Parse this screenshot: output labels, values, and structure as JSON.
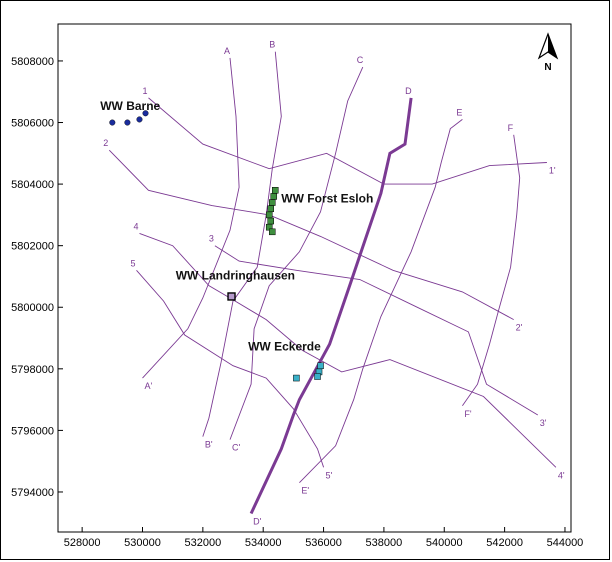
{
  "axes": {
    "x_ticks": [
      "528000",
      "530000",
      "532000",
      "534000",
      "536000",
      "538000",
      "540000",
      "542000",
      "544000"
    ],
    "y_ticks": [
      "5808000",
      "5806000",
      "5804000",
      "5802000",
      "5800000",
      "5798000",
      "5796000",
      "5794000"
    ],
    "xlim": [
      527200,
      544200
    ],
    "ylim": [
      5792700,
      5809200
    ]
  },
  "north_arrow": {
    "label": "N"
  },
  "colors": {
    "section": "#7b3a93",
    "barne": "#1a2c9c",
    "forst": "#3f8f3f",
    "landring": "#6a3d8f",
    "eckerde": "#3ab0c8"
  },
  "section_lines": [
    {
      "label": "A",
      "end_label": "A'",
      "bold": false,
      "points": [
        [
          532900,
          5808100
        ],
        [
          533100,
          5806200
        ],
        [
          533200,
          5803900
        ],
        [
          532900,
          5802500
        ],
        [
          532000,
          5800300
        ],
        [
          531500,
          5799300
        ],
        [
          530000,
          5797700
        ]
      ]
    },
    {
      "label": "B",
      "end_label": "B'",
      "bold": false,
      "points": [
        [
          534400,
          5808300
        ],
        [
          534600,
          5806200
        ],
        [
          534300,
          5804500
        ],
        [
          534100,
          5803000
        ],
        [
          533800,
          5801300
        ],
        [
          533000,
          5800200
        ],
        [
          532600,
          5798200
        ],
        [
          532200,
          5796400
        ],
        [
          532000,
          5795800
        ]
      ]
    },
    {
      "label": "C",
      "end_label": "C'",
      "bold": false,
      "points": [
        [
          537300,
          5807800
        ],
        [
          536800,
          5806700
        ],
        [
          536400,
          5805000
        ],
        [
          535900,
          5803100
        ],
        [
          535200,
          5801800
        ],
        [
          534200,
          5800700
        ],
        [
          533700,
          5799300
        ],
        [
          533600,
          5797500
        ],
        [
          532900,
          5795700
        ]
      ]
    },
    {
      "label": "D",
      "end_label": "D'",
      "bold": true,
      "points": [
        [
          538900,
          5806800
        ],
        [
          538700,
          5805300
        ],
        [
          538200,
          5805000
        ],
        [
          537900,
          5803700
        ],
        [
          536900,
          5800800
        ],
        [
          536200,
          5798800
        ],
        [
          535200,
          5797000
        ],
        [
          535000,
          5796500
        ],
        [
          534600,
          5795400
        ],
        [
          533600,
          5793300
        ]
      ]
    },
    {
      "label": "E",
      "end_label": "E'",
      "bold": false,
      "points": [
        [
          540600,
          5806100
        ],
        [
          540200,
          5805800
        ],
        [
          539900,
          5804700
        ],
        [
          539700,
          5803900
        ],
        [
          538900,
          5801800
        ],
        [
          537900,
          5799700
        ],
        [
          537300,
          5798000
        ],
        [
          537000,
          5797000
        ],
        [
          536400,
          5795500
        ],
        [
          535200,
          5794300
        ]
      ]
    },
    {
      "label": "F",
      "end_label": "F'",
      "bold": false,
      "points": [
        [
          542300,
          5805600
        ],
        [
          542500,
          5804200
        ],
        [
          542400,
          5803000
        ],
        [
          542200,
          5801300
        ],
        [
          541800,
          5799900
        ],
        [
          541500,
          5798800
        ],
        [
          541100,
          5797500
        ],
        [
          540600,
          5796800
        ]
      ]
    },
    {
      "label": "1",
      "end_label": "1'",
      "bold": false,
      "points": [
        [
          530200,
          5806800
        ],
        [
          532000,
          5805300
        ],
        [
          534200,
          5804500
        ],
        [
          536100,
          5805000
        ],
        [
          538000,
          5804000
        ],
        [
          539600,
          5804000
        ],
        [
          541500,
          5804600
        ],
        [
          543400,
          5804700
        ]
      ]
    },
    {
      "label": "2",
      "end_label": "2'",
      "bold": false,
      "points": [
        [
          528900,
          5805100
        ],
        [
          530200,
          5803800
        ],
        [
          532300,
          5803300
        ],
        [
          534200,
          5803000
        ],
        [
          535900,
          5802300
        ],
        [
          538300,
          5801200
        ],
        [
          540600,
          5800500
        ],
        [
          542300,
          5799600
        ]
      ]
    },
    {
      "label": "3",
      "end_label": "3'",
      "bold": false,
      "points": [
        [
          532400,
          5802000
        ],
        [
          533200,
          5801500
        ],
        [
          535100,
          5801200
        ],
        [
          537200,
          5800900
        ],
        [
          539100,
          5800000
        ],
        [
          540800,
          5799200
        ],
        [
          541400,
          5797500
        ],
        [
          543100,
          5796500
        ]
      ]
    },
    {
      "label": "4",
      "end_label": "4'",
      "bold": false,
      "points": [
        [
          529900,
          5802400
        ],
        [
          531000,
          5802000
        ],
        [
          532200,
          5800700
        ],
        [
          532900,
          5800300
        ],
        [
          534100,
          5799600
        ],
        [
          535300,
          5798600
        ],
        [
          536600,
          5797900
        ],
        [
          538200,
          5798300
        ],
        [
          541300,
          5797100
        ],
        [
          543700,
          5794800
        ]
      ]
    },
    {
      "label": "5",
      "end_label": "5'",
      "bold": false,
      "points": [
        [
          529800,
          5801200
        ],
        [
          530700,
          5800200
        ],
        [
          531400,
          5799100
        ],
        [
          533000,
          5798100
        ],
        [
          534100,
          5797700
        ],
        [
          535000,
          5796700
        ],
        [
          535800,
          5795400
        ],
        [
          536000,
          5794800
        ]
      ]
    }
  ],
  "wellfields": [
    {
      "name": "WW Barne",
      "marker": "circle",
      "color": "#1a2c9c",
      "points": [
        [
          529000,
          5806000
        ],
        [
          529500,
          5806000
        ],
        [
          529900,
          5806100
        ],
        [
          530100,
          5806300
        ]
      ],
      "label_at": [
        528600,
        5806400
      ]
    },
    {
      "name": "WW Forst Esloh",
      "marker": "square",
      "color": "#3f8f3f",
      "points": [
        [
          534400,
          5803800
        ],
        [
          534350,
          5803600
        ],
        [
          534300,
          5803400
        ],
        [
          534250,
          5803200
        ],
        [
          534200,
          5803000
        ],
        [
          534250,
          5802800
        ],
        [
          534200,
          5802600
        ],
        [
          534300,
          5802450
        ]
      ],
      "label_at": [
        534600,
        5803400
      ]
    },
    {
      "name": "WW Landringhausen",
      "marker": "square-outline",
      "color": "#6a3d8f",
      "points": [
        [
          532950,
          5800350
        ]
      ],
      "label_at": [
        531100,
        5800900
      ]
    },
    {
      "name": "WW Eckerde",
      "marker": "square",
      "color": "#3ab0c8",
      "points": [
        [
          535100,
          5797700
        ],
        [
          535900,
          5798100
        ],
        [
          535850,
          5797900
        ],
        [
          535800,
          5797750
        ]
      ],
      "label_at": [
        533500,
        5798600
      ]
    }
  ]
}
